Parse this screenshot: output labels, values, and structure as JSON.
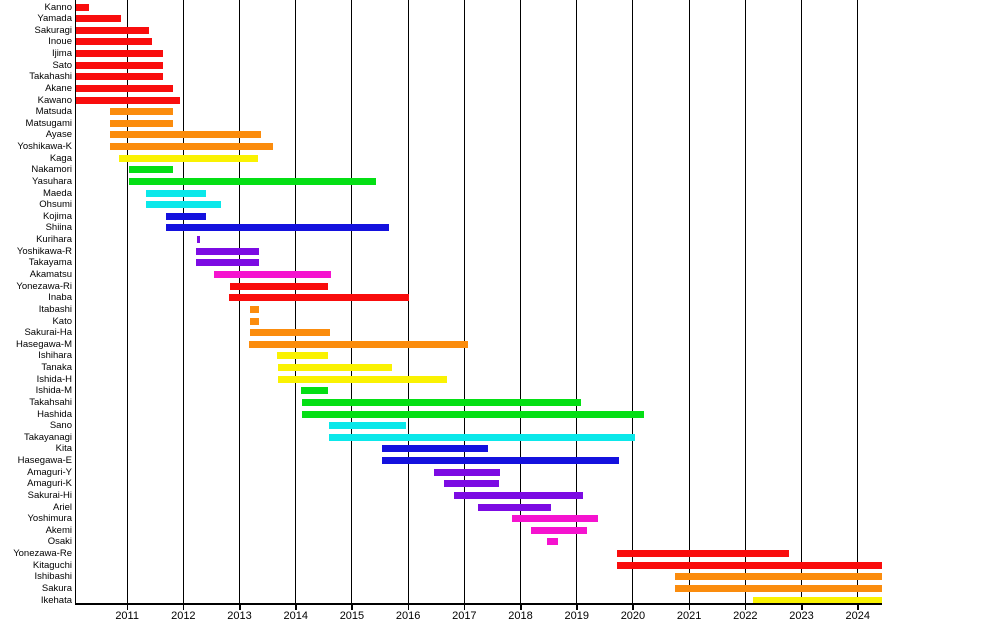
{
  "chart_data": {
    "type": "bar",
    "subtype": "horizontal-gantt-timeline",
    "title": "",
    "xlabel": "",
    "ylabel": "",
    "x_range": [
      2010.09,
      2024.43
    ],
    "x_ticks": [
      2011,
      2012,
      2013,
      2014,
      2015,
      2016,
      2017,
      2018,
      2019,
      2020,
      2021,
      2022,
      2023,
      2024
    ],
    "grid": "vertical-year-lines",
    "legend": "none",
    "palette": {
      "red": "#F90D0D",
      "orange": "#FB8C0D",
      "yellow": "#FAF202",
      "green": "#04DF14",
      "cyan": "#0BE8EA",
      "blue": "#1411DE",
      "purple": "#7C0BE3",
      "magenta": "#F513CF"
    },
    "rows": [
      {
        "label": "Kanno",
        "start": 2010.09,
        "end": 2010.32,
        "color": "red"
      },
      {
        "label": "Yamada",
        "start": 2010.09,
        "end": 2010.89,
        "color": "red"
      },
      {
        "label": "Sakuragi",
        "start": 2010.09,
        "end": 2011.39,
        "color": "red"
      },
      {
        "label": "Inoue",
        "start": 2010.09,
        "end": 2011.44,
        "color": "red"
      },
      {
        "label": "Ijima",
        "start": 2010.09,
        "end": 2011.64,
        "color": "red"
      },
      {
        "label": "Sato",
        "start": 2010.09,
        "end": 2011.64,
        "color": "red"
      },
      {
        "label": "Takahashi",
        "start": 2010.09,
        "end": 2011.63,
        "color": "red"
      },
      {
        "label": "Akane",
        "start": 2010.09,
        "end": 2011.81,
        "color": "red"
      },
      {
        "label": "Kawano",
        "start": 2010.09,
        "end": 2011.94,
        "color": "red"
      },
      {
        "label": "Matsuda",
        "start": 2010.7,
        "end": 2011.82,
        "color": "orange"
      },
      {
        "label": "Matsugami",
        "start": 2010.7,
        "end": 2011.82,
        "color": "orange"
      },
      {
        "label": "Ayase",
        "start": 2010.7,
        "end": 2013.38,
        "color": "orange"
      },
      {
        "label": "Yoshikawa-K",
        "start": 2010.7,
        "end": 2013.59,
        "color": "orange"
      },
      {
        "label": "Kaga",
        "start": 2010.86,
        "end": 2013.32,
        "color": "yellow"
      },
      {
        "label": "Nakamori",
        "start": 2011.04,
        "end": 2011.82,
        "color": "green"
      },
      {
        "label": "Yasuhara",
        "start": 2011.04,
        "end": 2015.43,
        "color": "green"
      },
      {
        "label": "Maeda",
        "start": 2011.33,
        "end": 2012.4,
        "color": "cyan"
      },
      {
        "label": "Ohsumi",
        "start": 2011.33,
        "end": 2012.67,
        "color": "cyan"
      },
      {
        "label": "Kojima",
        "start": 2011.7,
        "end": 2012.4,
        "color": "blue"
      },
      {
        "label": "Shiina",
        "start": 2011.7,
        "end": 2015.66,
        "color": "blue"
      },
      {
        "label": "Kurihara",
        "start": 2012.24,
        "end": 2012.29,
        "color": "purple"
      },
      {
        "label": "Yoshikawa-R",
        "start": 2012.23,
        "end": 2013.34,
        "color": "purple"
      },
      {
        "label": "Takayama",
        "start": 2012.23,
        "end": 2013.34,
        "color": "purple"
      },
      {
        "label": "Akamatsu",
        "start": 2012.54,
        "end": 2014.63,
        "color": "magenta"
      },
      {
        "label": "Yonezawa-Ri",
        "start": 2012.83,
        "end": 2014.57,
        "color": "red"
      },
      {
        "label": "Inaba",
        "start": 2012.82,
        "end": 2016.02,
        "color": "red"
      },
      {
        "label": "Itabashi",
        "start": 2013.18,
        "end": 2013.34,
        "color": "orange"
      },
      {
        "label": "Kato",
        "start": 2013.18,
        "end": 2013.34,
        "color": "orange"
      },
      {
        "label": "Sakurai-Ha",
        "start": 2013.18,
        "end": 2014.61,
        "color": "orange"
      },
      {
        "label": "Hasegawa-M",
        "start": 2013.16,
        "end": 2017.06,
        "color": "orange"
      },
      {
        "label": "Ishihara",
        "start": 2013.67,
        "end": 2014.57,
        "color": "yellow"
      },
      {
        "label": "Tanaka",
        "start": 2013.68,
        "end": 2015.71,
        "color": "yellow"
      },
      {
        "label": "Ishida-H",
        "start": 2013.68,
        "end": 2016.69,
        "color": "yellow"
      },
      {
        "label": "Ishida-M",
        "start": 2014.1,
        "end": 2014.57,
        "color": "green"
      },
      {
        "label": "Takahsahi",
        "start": 2014.11,
        "end": 2019.07,
        "color": "green"
      },
      {
        "label": "Hashida",
        "start": 2014.11,
        "end": 2020.2,
        "color": "green"
      },
      {
        "label": "Sano",
        "start": 2014.6,
        "end": 2015.96,
        "color": "cyan"
      },
      {
        "label": "Takayanagi",
        "start": 2014.6,
        "end": 2020.04,
        "color": "cyan"
      },
      {
        "label": "Kita",
        "start": 2015.53,
        "end": 2017.42,
        "color": "blue"
      },
      {
        "label": "Hasegawa-E",
        "start": 2015.53,
        "end": 2019.76,
        "color": "blue"
      },
      {
        "label": "Amaguri-Y",
        "start": 2016.46,
        "end": 2017.63,
        "color": "purple"
      },
      {
        "label": "Amaguri-K",
        "start": 2016.63,
        "end": 2017.61,
        "color": "purple"
      },
      {
        "label": "Sakurai-Hi",
        "start": 2016.82,
        "end": 2019.12,
        "color": "purple"
      },
      {
        "label": "Ariel",
        "start": 2017.25,
        "end": 2018.54,
        "color": "purple"
      },
      {
        "label": "Yoshimura",
        "start": 2017.84,
        "end": 2019.37,
        "color": "magenta"
      },
      {
        "label": "Akemi",
        "start": 2018.18,
        "end": 2019.18,
        "color": "magenta"
      },
      {
        "label": "Osaki",
        "start": 2018.47,
        "end": 2018.66,
        "color": "magenta"
      },
      {
        "label": "Yonezawa-Re",
        "start": 2019.72,
        "end": 2022.77,
        "color": "red"
      },
      {
        "label": "Kitaguchi",
        "start": 2019.72,
        "end": 2024.43,
        "color": "red"
      },
      {
        "label": "Ishibashi",
        "start": 2020.75,
        "end": 2024.43,
        "color": "orange"
      },
      {
        "label": "Sakura",
        "start": 2020.75,
        "end": 2024.43,
        "color": "orange"
      },
      {
        "label": "Ikehata",
        "start": 2022.13,
        "end": 2024.43,
        "color": "yellow"
      }
    ]
  }
}
